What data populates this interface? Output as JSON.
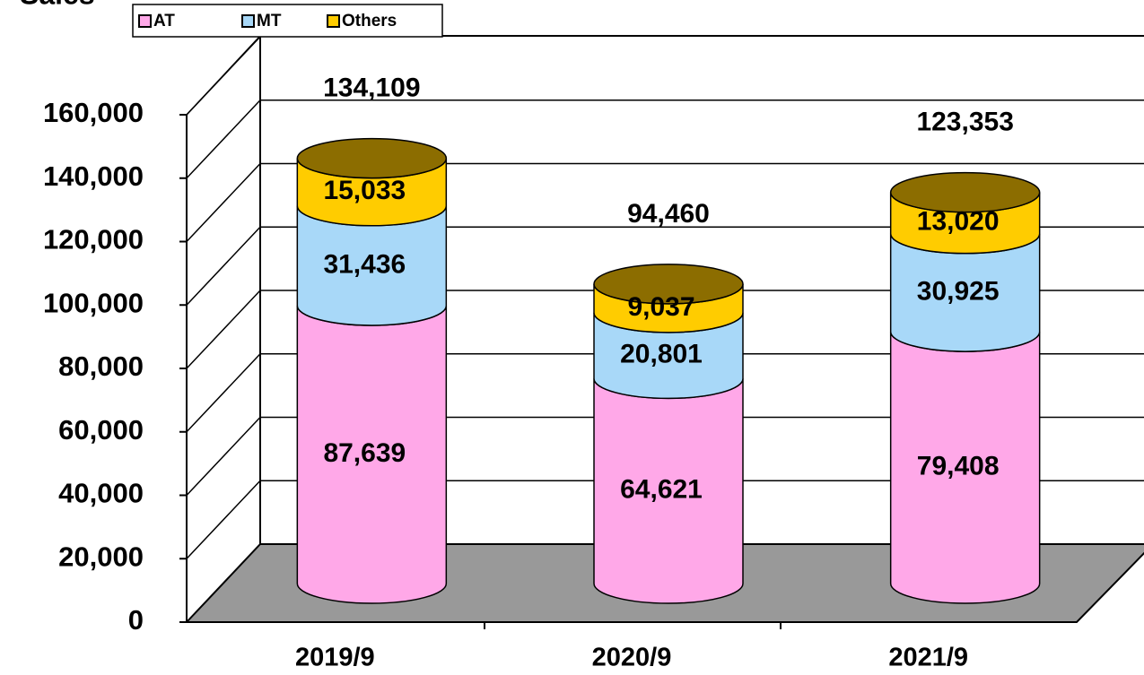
{
  "chart_data": {
    "type": "stacked-cylinder",
    "y_label": "Sales",
    "categories": [
      "2019/9",
      "2020/9",
      "2021/9"
    ],
    "series": [
      {
        "name": "AT",
        "color": "#ffa8e8",
        "values": [
          87639,
          64621,
          79408
        ],
        "value_labels": [
          "87,639",
          "64,621",
          "79,408"
        ]
      },
      {
        "name": "MT",
        "color": "#a8d8f8",
        "values": [
          31436,
          20801,
          30925
        ],
        "value_labels": [
          "31,436",
          "20,801",
          "30,925"
        ]
      },
      {
        "name": "Others",
        "color": "#ffcc00",
        "values": [
          15033,
          9037,
          13020
        ],
        "value_labels": [
          "15,033",
          "9,037",
          "13,020"
        ]
      }
    ],
    "totals": [
      134109,
      94460,
      123353
    ],
    "total_labels": [
      "134,109",
      "94,460",
      "123,353"
    ],
    "ylim": [
      0,
      160000
    ],
    "yticks": [
      0,
      {
        "value": 20000,
        "label": "20,000"
      },
      {
        "value": 40000,
        "label": "40,000"
      },
      {
        "value": 60000,
        "label": "60,000"
      },
      {
        "value": 80000,
        "label": "80,000"
      },
      {
        "value": 100000,
        "label": "100,000"
      },
      {
        "value": 120000,
        "label": "120,000"
      },
      {
        "value": 140000,
        "label": "140,000"
      },
      {
        "value": 160000,
        "label": "160,000"
      }
    ],
    "grid": true,
    "legend": "top-left"
  }
}
